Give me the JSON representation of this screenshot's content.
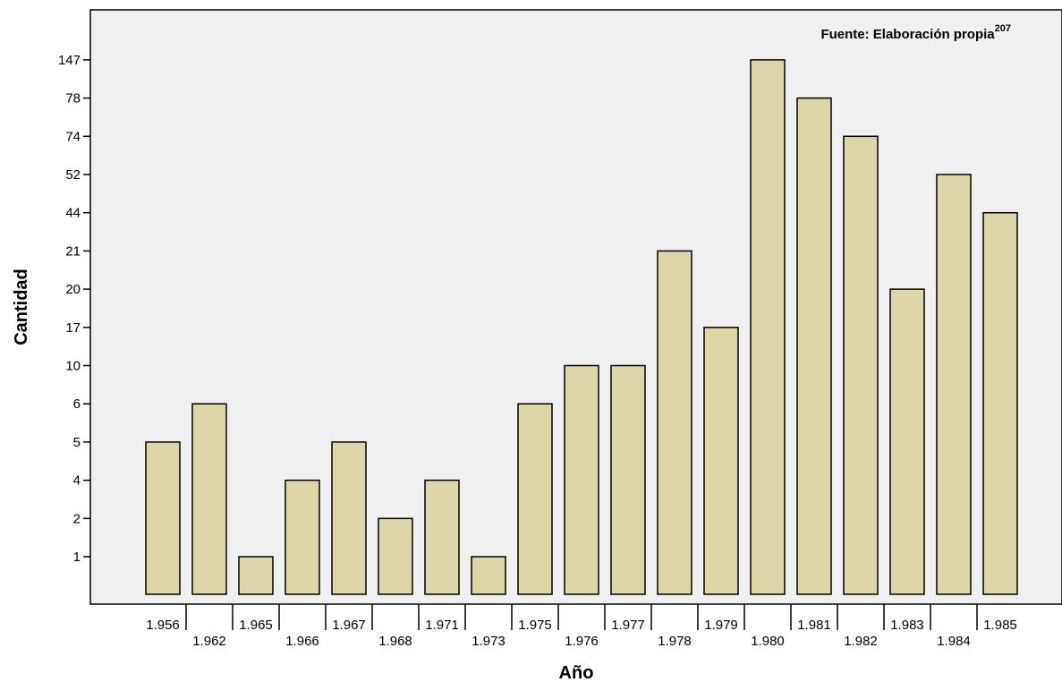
{
  "chart_data": {
    "type": "bar",
    "title": "",
    "xlabel": "Año",
    "ylabel": "Cantidad",
    "source_note": "Fuente: Elaboración propia",
    "source_note_sup": "207",
    "y_ticks": [
      "1",
      "2",
      "4",
      "5",
      "6",
      "10",
      "17",
      "20",
      "21",
      "44",
      "52",
      "74",
      "78",
      "147"
    ],
    "categories": [
      "1.956",
      "1.962",
      "1.965",
      "1.966",
      "1.967",
      "1.968",
      "1.971",
      "1.973",
      "1.975",
      "1.976",
      "1.977",
      "1.978",
      "1.979",
      "1.980",
      "1.981",
      "1.982",
      "1.983",
      "1.984",
      "1.985"
    ],
    "values": [
      5,
      6,
      1,
      4,
      5,
      2,
      4,
      1,
      6,
      10,
      10,
      21,
      17,
      147,
      78,
      74,
      20,
      52,
      44
    ],
    "y_scale": "categorical-ordinal",
    "grid": false,
    "colors": {
      "bar_fill": "#dcd6a8",
      "bar_stroke": "#000000",
      "plot_background": "#f0f0f0"
    }
  }
}
